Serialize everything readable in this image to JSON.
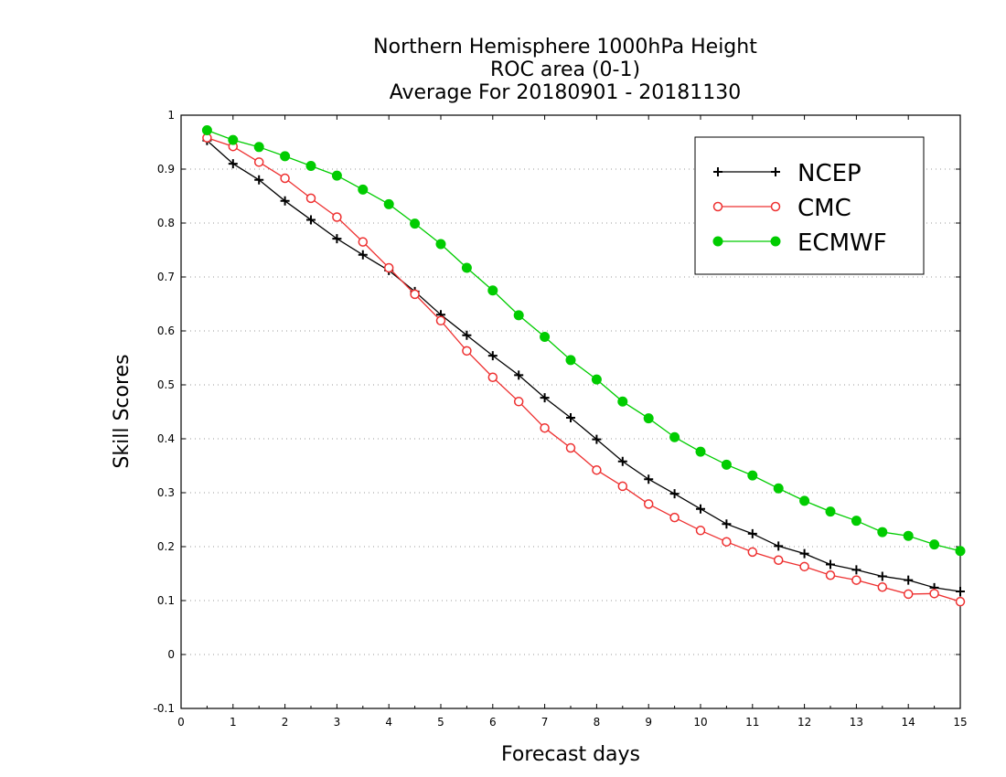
{
  "chart_data": {
    "type": "line",
    "title": [
      "Northern Hemisphere 1000hPa Height",
      "ROC area (0-1)",
      "Average For 20180901 - 20181130"
    ],
    "xlabel": "Forecast days",
    "ylabel": "Skill Scores",
    "xlim": [
      0,
      15
    ],
    "ylim": [
      -0.1,
      1
    ],
    "xticks": [
      "0",
      "1",
      "2",
      "3",
      "4",
      "5",
      "6",
      "7",
      "8",
      "9",
      "10",
      "11",
      "12",
      "13",
      "14",
      "15"
    ],
    "yticks": [
      "-0.1",
      "0",
      "0.1",
      "0.2",
      "0.3",
      "0.4",
      "0.5",
      "0.6",
      "0.7",
      "0.8",
      "0.9",
      "1"
    ],
    "grid": true,
    "legend_position": "top-right",
    "x": [
      0.5,
      1,
      1.5,
      2,
      2.5,
      3,
      3.5,
      4,
      4.5,
      5,
      5.5,
      6,
      6.5,
      7,
      7.5,
      8,
      8.5,
      9,
      9.5,
      10,
      10.5,
      11,
      11.5,
      12,
      12.5,
      13,
      13.5,
      14,
      14.5,
      15
    ],
    "series": [
      {
        "name": "NCEP",
        "color": "#000000",
        "marker": "plus",
        "values": [
          0.953,
          0.91,
          0.88,
          0.841,
          0.806,
          0.771,
          0.741,
          0.712,
          0.673,
          0.63,
          0.592,
          0.554,
          0.518,
          0.476,
          0.439,
          0.399,
          0.358,
          0.325,
          0.298,
          0.27,
          0.242,
          0.224,
          0.201,
          0.187,
          0.167,
          0.157,
          0.145,
          0.138,
          0.124,
          0.117
        ]
      },
      {
        "name": "CMC",
        "color": "#ee3030",
        "marker": "open-circle",
        "values": [
          0.958,
          0.942,
          0.913,
          0.883,
          0.846,
          0.811,
          0.765,
          0.717,
          0.668,
          0.619,
          0.563,
          0.514,
          0.469,
          0.42,
          0.383,
          0.342,
          0.312,
          0.279,
          0.254,
          0.23,
          0.209,
          0.19,
          0.175,
          0.163,
          0.147,
          0.138,
          0.125,
          0.112,
          0.113,
          0.098
        ]
      },
      {
        "name": "ECMWF",
        "color": "#00cc00",
        "marker": "filled-circle",
        "values": [
          0.972,
          0.954,
          0.941,
          0.924,
          0.906,
          0.888,
          0.862,
          0.835,
          0.799,
          0.761,
          0.717,
          0.675,
          0.629,
          0.589,
          0.546,
          0.51,
          0.469,
          0.438,
          0.403,
          0.376,
          0.352,
          0.332,
          0.308,
          0.285,
          0.265,
          0.248,
          0.227,
          0.22,
          0.204,
          0.192
        ]
      }
    ]
  }
}
